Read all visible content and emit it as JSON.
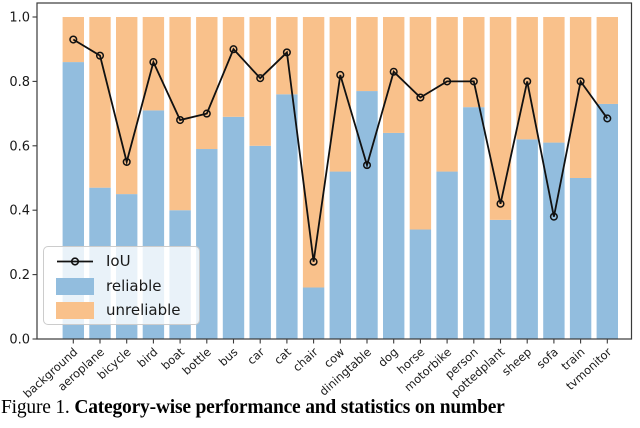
{
  "chart_data": {
    "type": "bar",
    "stacked": true,
    "grid": false,
    "legend_position": "lower left",
    "categories": [
      "background",
      "aeroplane",
      "bicycle",
      "bird",
      "boat",
      "bottle",
      "bus",
      "car",
      "cat",
      "chair",
      "cow",
      "diningtable",
      "dog",
      "horse",
      "motorbike",
      "person",
      "pottedplant",
      "sheep",
      "sofa",
      "train",
      "tvmonitor"
    ],
    "series": [
      {
        "name": "reliable",
        "color": "#92bdde",
        "values": [
          0.86,
          0.47,
          0.45,
          0.71,
          0.4,
          0.59,
          0.69,
          0.6,
          0.76,
          0.16,
          0.52,
          0.77,
          0.64,
          0.34,
          0.52,
          0.72,
          0.37,
          0.62,
          0.61,
          0.5,
          0.73
        ]
      },
      {
        "name": "unreliable",
        "color": "#f9c18b",
        "values": [
          0.14,
          0.53,
          0.55,
          0.29,
          0.6,
          0.41,
          0.31,
          0.4,
          0.24,
          0.84,
          0.48,
          0.23,
          0.36,
          0.66,
          0.48,
          0.28,
          0.63,
          0.38,
          0.39,
          0.5,
          0.27
        ]
      }
    ],
    "line_series": {
      "name": "IoU",
      "color": "#111111",
      "marker": "open-circle",
      "values": [
        0.93,
        0.88,
        0.55,
        0.86,
        0.68,
        0.7,
        0.9,
        0.81,
        0.89,
        0.24,
        0.82,
        0.54,
        0.83,
        0.75,
        0.8,
        0.8,
        0.42,
        0.8,
        0.38,
        0.8,
        0.685
      ]
    },
    "ylim": [
      0,
      1.043
    ],
    "yticks": [
      "0.0",
      "0.2",
      "0.4",
      "0.6",
      "0.8",
      "1.0"
    ],
    "ytick_values": [
      0.0,
      0.2,
      0.4,
      0.6,
      0.8,
      1.0
    ],
    "xlabel": "",
    "ylabel": "",
    "title": ""
  },
  "caption": {
    "prefix": "Figure 1.",
    "title": "Category-wise performance and statistics on number"
  }
}
